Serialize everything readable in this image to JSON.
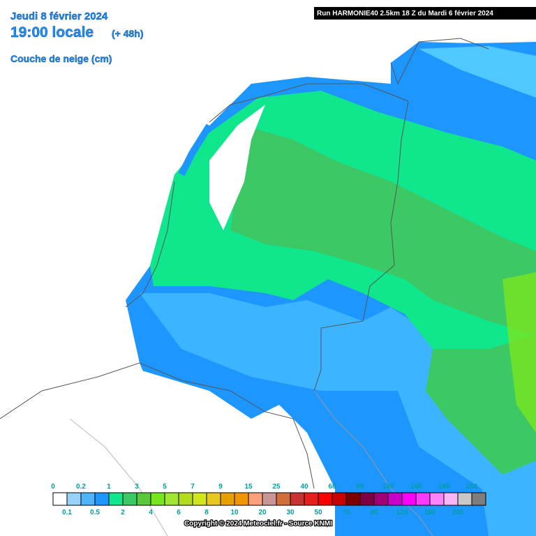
{
  "header": {
    "date": "Jeudi 8 février 2024",
    "time": "19:00 locale",
    "lead": "(+ 48h)",
    "field": "Couche de neige (cm)",
    "run": "Run HARMONIE40 2.5km 18 Z du Mardi 6 février 2024"
  },
  "legend": {
    "boundaries": [
      "0",
      "0.1",
      "0.2",
      "0.5",
      "1",
      "2",
      "3",
      "4",
      "5",
      "6",
      "7",
      "8",
      "9",
      "10",
      "15",
      "20",
      "25",
      "30",
      "40",
      "50",
      "60",
      "70",
      "80",
      "90",
      "100",
      "120",
      "140",
      "160",
      "180",
      "200",
      "250"
    ],
    "colors": [
      "#ffffff",
      "#96d2fa",
      "#50b4fa",
      "#1e96ff",
      "#10e68c",
      "#3cc864",
      "#5ac83c",
      "#78e61e",
      "#a0e632",
      "#b4dc1e",
      "#d2e61e",
      "#e6c81e",
      "#e6a000",
      "#f09600",
      "#faa07a",
      "#c89696",
      "#d26e3c",
      "#c83232",
      "#e61e1e",
      "#fa0000",
      "#c80000",
      "#7d0000",
      "#7d0046",
      "#a00078",
      "#c800c8",
      "#fa00fa",
      "#fa3cfa",
      "#fa82fa",
      "#fab4fa",
      "#c8c8c8",
      "#7d7d7d"
    ]
  },
  "footer": {
    "copyright": "Copyright © 2024 Meteociel.fr - Source KNMI"
  }
}
